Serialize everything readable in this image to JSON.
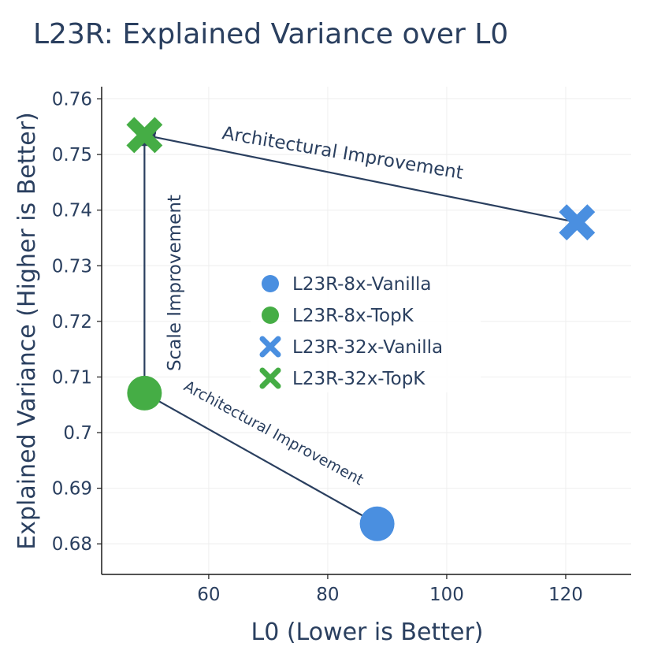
{
  "chart_data": {
    "type": "scatter",
    "title": "L23R: Explained Variance over L0",
    "xlabel": "L0 (Lower is Better)",
    "ylabel": "Explained Variance (Higher is Better)",
    "xlim": [
      42,
      131
    ],
    "ylim": [
      0.6745,
      0.7622
    ],
    "xticks": [
      60,
      80,
      100,
      120
    ],
    "xtick_labels": [
      "60",
      "80",
      "100",
      "120"
    ],
    "yticks": [
      0.68,
      0.69,
      0.7,
      0.71,
      0.72,
      0.73,
      0.74,
      0.75,
      0.76
    ],
    "ytick_labels": [
      "0.68",
      "0.69",
      "0.7",
      "0.71",
      "0.72",
      "0.73",
      "0.74",
      "0.75",
      "0.76"
    ],
    "grid": true,
    "legend_position": "center",
    "series": [
      {
        "name": "L23R-8x-Vanilla",
        "marker": "circle",
        "color": "#4a8fe0",
        "x": [
          88.3
        ],
        "y": [
          0.6836
        ]
      },
      {
        "name": "L23R-8x-TopK",
        "marker": "circle",
        "color": "#45ad45",
        "x": [
          49.2
        ],
        "y": [
          0.7071
        ]
      },
      {
        "name": "L23R-32x-Vanilla",
        "marker": "x",
        "color": "#4a8fe0",
        "x": [
          121.9
        ],
        "y": [
          0.7378
        ]
      },
      {
        "name": "L23R-32x-TopK",
        "marker": "x",
        "color": "#45ad45",
        "x": [
          49.2
        ],
        "y": [
          0.7535
        ]
      }
    ],
    "annotations": [
      {
        "text": "Architectural Improvement",
        "from": [
          121.9,
          0.7378
        ],
        "to": [
          49.2,
          0.7535
        ]
      },
      {
        "text": "Scale Improvement",
        "from": [
          49.2,
          0.7071
        ],
        "to": [
          49.2,
          0.7535
        ]
      },
      {
        "text": "Architectural Improvement",
        "from": [
          88.3,
          0.6836
        ],
        "to": [
          49.2,
          0.7071
        ]
      }
    ]
  }
}
